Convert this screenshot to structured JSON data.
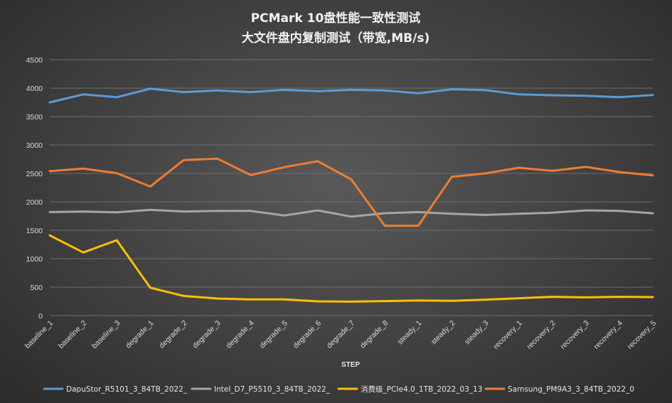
{
  "chart_data": {
    "type": "line",
    "title": "PCMark  10盘性能一致性测试",
    "subtitle": "大文件盘内复制测试（带宽,MB/s)",
    "xlabel": "STEP",
    "ylabel": "",
    "ylim": [
      0,
      4500
    ],
    "yticks": [
      0,
      500,
      1000,
      1500,
      2000,
      2500,
      3000,
      3500,
      4000,
      4500
    ],
    "grid": true,
    "legend_position": "bottom",
    "categories": [
      "baseline_1",
      "baseline_2",
      "baseline_3",
      "degrade_1",
      "degrade_2",
      "degrade_3",
      "degrade_4",
      "degrade_5",
      "degrade_6",
      "degrade_7",
      "degrade_8",
      "steady_1",
      "steady_2",
      "steady_3",
      "recovery_1",
      "recovery_2",
      "recovery_3",
      "recovery_4",
      "recovery_5"
    ],
    "series": [
      {
        "name": "DapuStor_R5101_3_84TB_2022_",
        "color": "#5b9bd5",
        "values": [
          3750,
          3890,
          3840,
          3990,
          3930,
          3960,
          3930,
          3970,
          3945,
          3970,
          3960,
          3910,
          3980,
          3965,
          3890,
          3875,
          3865,
          3840,
          3880
        ]
      },
      {
        "name": "Intel_D7_P5510_3_84TB_2022_",
        "color": "#a5a5a5",
        "values": [
          1820,
          1830,
          1815,
          1860,
          1830,
          1840,
          1840,
          1760,
          1850,
          1740,
          1800,
          1820,
          1790,
          1770,
          1790,
          1810,
          1850,
          1840,
          1800
        ]
      },
      {
        "name": "消费级_PCIe4.0_1TB_2022_03_13",
        "color": "#ffc000",
        "values": [
          1410,
          1110,
          1325,
          490,
          345,
          300,
          285,
          285,
          250,
          245,
          255,
          265,
          260,
          280,
          305,
          330,
          320,
          330,
          325
        ]
      },
      {
        "name": "Samsung_PM9A3_3_84TB_2022_0",
        "color": "#ed7d31",
        "values": [
          2540,
          2585,
          2505,
          2270,
          2735,
          2760,
          2470,
          2610,
          2715,
          2395,
          1580,
          1580,
          2440,
          2500,
          2600,
          2545,
          2615,
          2525,
          2465
        ]
      }
    ]
  }
}
